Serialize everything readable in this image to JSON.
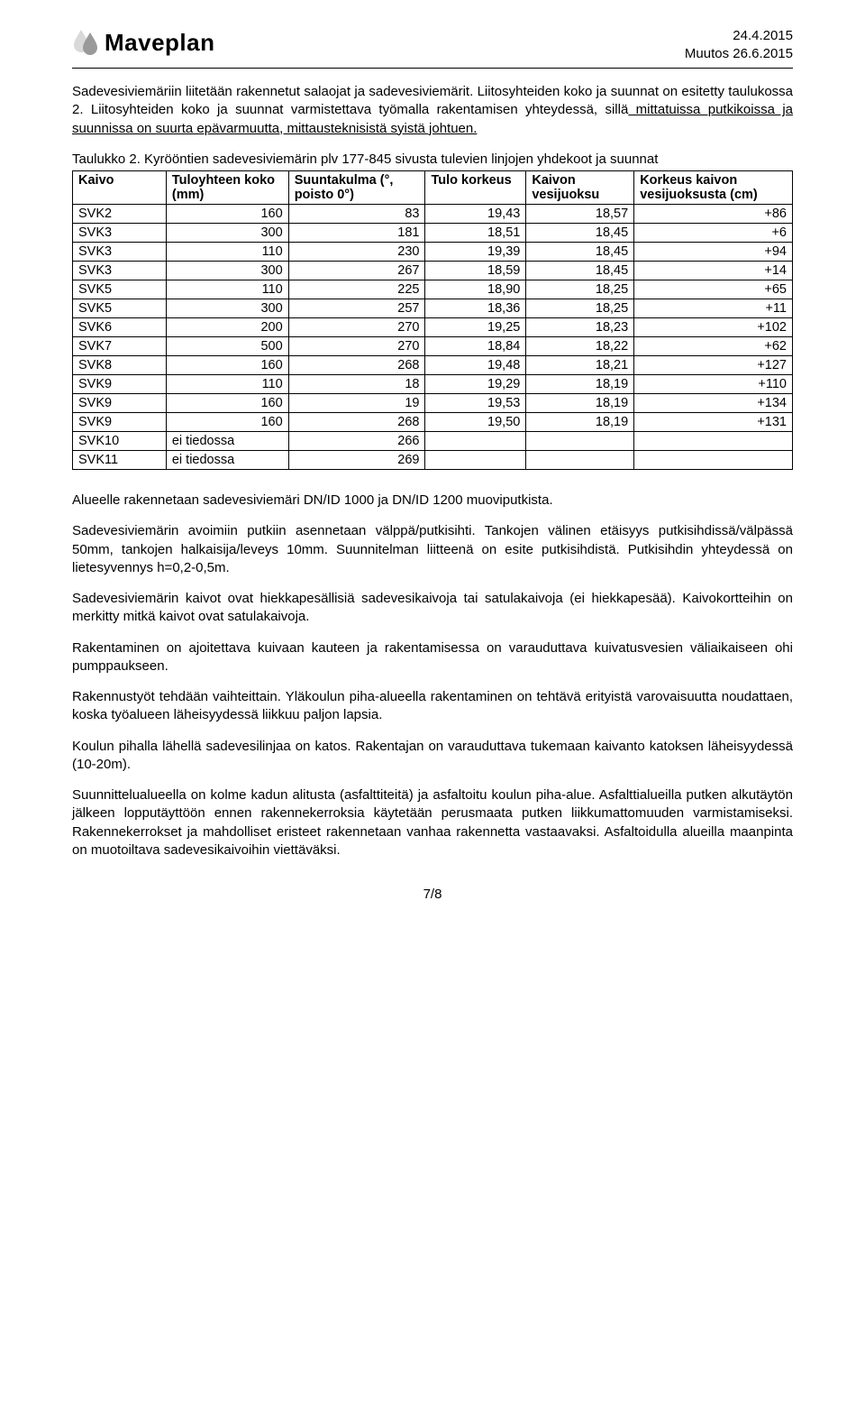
{
  "header": {
    "brand": "Maveplan",
    "date1": "24.4.2015",
    "date2": "Muutos 26.6.2015",
    "logo_color_light": "#d9d9d9",
    "logo_color_dark": "#9a9a9a"
  },
  "para_intro": "Sadevesiviemäriin liitetään rakennetut salaojat ja sadevesiviemärit. Liitosyhteiden koko ja suunnat on esitetty taulukossa 2. Liitosyhteiden koko ja suunnat varmistettava työmalla rakentamisen yhteydessä, sillä",
  "para_intro_underlined": " mittatuissa putkikoissa ja suunnissa on suurta epävarmuutta, mittausteknisistä syistä johtuen.",
  "table_caption_line1": "Taulukko 2. Kyrööntien sadevesiviemärin plv 177-845 sivusta tulevien linjojen yhdekoot ja suunnat",
  "table": {
    "columns": [
      {
        "label": "Kaivo",
        "width": "13%"
      },
      {
        "label": "Tuloyhteen koko (mm)",
        "width": "17%"
      },
      {
        "label": "Suuntakulma (°, poisto 0°)",
        "width": "19%"
      },
      {
        "label": "Tulo korkeus",
        "width": "14%"
      },
      {
        "label": "Kaivon vesijuoksu",
        "width": "15%"
      },
      {
        "label": "Korkeus kaivon vesijuoksusta (cm)",
        "width": "22%"
      }
    ],
    "rows": [
      [
        "SVK2",
        "160",
        "83",
        "19,43",
        "18,57",
        "+86"
      ],
      [
        "SVK3",
        "300",
        "181",
        "18,51",
        "18,45",
        "+6"
      ],
      [
        "SVK3",
        "110",
        "230",
        "19,39",
        "18,45",
        "+94"
      ],
      [
        "SVK3",
        "300",
        "267",
        "18,59",
        "18,45",
        "+14"
      ],
      [
        "SVK5",
        "110",
        "225",
        "18,90",
        "18,25",
        "+65"
      ],
      [
        "SVK5",
        "300",
        "257",
        "18,36",
        "18,25",
        "+11"
      ],
      [
        "SVK6",
        "200",
        "270",
        "19,25",
        "18,23",
        "+102"
      ],
      [
        "SVK7",
        "500",
        "270",
        "18,84",
        "18,22",
        "+62"
      ],
      [
        "SVK8",
        "160",
        "268",
        "19,48",
        "18,21",
        "+127"
      ],
      [
        "SVK9",
        "110",
        "18",
        "19,29",
        "18,19",
        "+110"
      ],
      [
        "SVK9",
        "160",
        "19",
        "19,53",
        "18,19",
        "+134"
      ],
      [
        "SVK9",
        "160",
        "268",
        "19,50",
        "18,19",
        "+131"
      ],
      [
        "SVK10",
        "ei tiedossa",
        "266",
        "",
        "",
        ""
      ],
      [
        "SVK11",
        "ei tiedossa",
        "269",
        "",
        "",
        ""
      ]
    ]
  },
  "paras": [
    "Alueelle rakennetaan sadevesiviemäri DN/ID 1000 ja DN/ID 1200 muoviputkista.",
    "Sadevesiviemärin avoimiin putkiin asennetaan välppä/putkisihti. Tankojen välinen etäisyys putkisihdissä/välpässä 50mm, tankojen halkaisija/leveys 10mm. Suunnitelman liitteenä on esite putkisihdistä. Putkisihdin yhteydessä on lietesyvennys h=0,2-0,5m.",
    "Sadevesiviemärin kaivot ovat hiekkapesällisiä sadevesikaivoja tai satulakaivoja (ei hiekkapesää). Kaivokortteihin on merkitty mitkä kaivot ovat satulakaivoja.",
    "Rakentaminen on ajoitettava kuivaan kauteen ja rakentamisessa on varauduttava kuivatusvesien väliaikaiseen ohi pumppaukseen.",
    "Rakennustyöt tehdään vaihteittain. Yläkoulun piha-alueella rakentaminen on tehtävä erityistä varovaisuutta noudattaen, koska työalueen läheisyydessä liikkuu paljon lapsia.",
    "Koulun pihalla lähellä sadevesilinjaa on katos. Rakentajan on varauduttava tukemaan kaivanto katoksen läheisyydessä (10-20m).",
    "Suunnittelualueella on kolme kadun alitusta (asfalttiteitä) ja asfaltoitu koulun piha-alue. Asfalttialueilla putken alkutäytön jälkeen lopputäyttöön ennen rakennekerroksia käytetään perusmaata putken liikkumattomuuden varmistamiseksi. Rakennekerrokset ja mahdolliset eristeet rakennetaan vanhaa rakennetta vastaavaksi. Asfaltoidulla alueilla maanpinta on muotoiltava sadevesikaivoihin viettäväksi."
  ],
  "footer": "7/8"
}
